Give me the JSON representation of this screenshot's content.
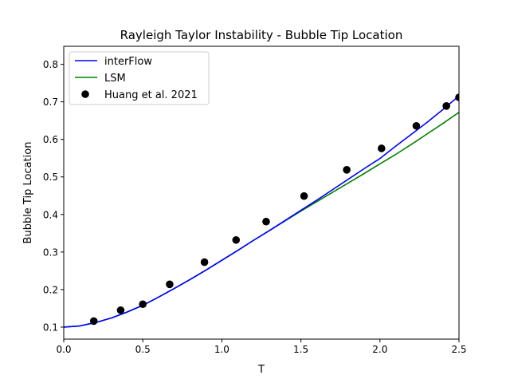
{
  "chart_data": {
    "type": "line",
    "title": "Rayleigh Taylor Instability - Bubble Tip Location",
    "xlabel": "T",
    "ylabel": "Bubble Tip Location",
    "xlim": [
      0.0,
      2.5
    ],
    "ylim": [
      0.068,
      0.848
    ],
    "xticks": [
      0.0,
      0.5,
      1.0,
      1.5,
      2.0,
      2.5
    ],
    "xtick_labels": [
      "0.0",
      "0.5",
      "1.0",
      "1.5",
      "2.0",
      "2.5"
    ],
    "yticks": [
      0.1,
      0.2,
      0.3,
      0.4,
      0.5,
      0.6,
      0.7,
      0.8
    ],
    "ytick_labels": [
      "0.1",
      "0.2",
      "0.3",
      "0.4",
      "0.5",
      "0.6",
      "0.7",
      "0.8"
    ],
    "grid": false,
    "legend_position": "top-left",
    "series": [
      {
        "name": "interFlow",
        "kind": "line",
        "color": "#0000ff",
        "x": [
          0.0,
          0.1,
          0.2,
          0.3,
          0.4,
          0.5,
          0.6,
          0.7,
          0.8,
          0.9,
          1.0,
          1.1,
          1.2,
          1.3,
          1.4,
          1.5,
          1.6,
          1.7,
          1.8,
          1.9,
          2.0,
          2.1,
          2.2,
          2.3,
          2.4,
          2.5
        ],
        "y": [
          0.1,
          0.103,
          0.112,
          0.124,
          0.14,
          0.158,
          0.18,
          0.203,
          0.227,
          0.252,
          0.278,
          0.304,
          0.331,
          0.357,
          0.384,
          0.411,
          0.438,
          0.466,
          0.494,
          0.522,
          0.549,
          0.582,
          0.614,
          0.646,
          0.68,
          0.716
        ]
      },
      {
        "name": "LSM",
        "kind": "line",
        "color": "#008000",
        "x": [
          0.0,
          0.1,
          0.2,
          0.3,
          0.4,
          0.5,
          0.6,
          0.7,
          0.8,
          0.9,
          1.0,
          1.1,
          1.2,
          1.3,
          1.4,
          1.5,
          1.6,
          1.7,
          1.8,
          1.9,
          2.0,
          2.1,
          2.2,
          2.3,
          2.4,
          2.5
        ],
        "y": [
          0.1,
          0.103,
          0.112,
          0.124,
          0.14,
          0.158,
          0.18,
          0.203,
          0.227,
          0.252,
          0.278,
          0.304,
          0.331,
          0.357,
          0.383,
          0.409,
          0.434,
          0.459,
          0.484,
          0.509,
          0.535,
          0.56,
          0.587,
          0.615,
          0.643,
          0.672
        ]
      },
      {
        "name": "Huang et al. 2021",
        "kind": "scatter",
        "color": "#000000",
        "x": [
          0.19,
          0.36,
          0.5,
          0.67,
          0.89,
          1.09,
          1.28,
          1.52,
          1.79,
          2.01,
          2.23,
          2.42,
          2.5
        ],
        "y": [
          0.116,
          0.145,
          0.161,
          0.214,
          0.273,
          0.332,
          0.381,
          0.449,
          0.519,
          0.576,
          0.636,
          0.689,
          0.712
        ]
      }
    ]
  }
}
